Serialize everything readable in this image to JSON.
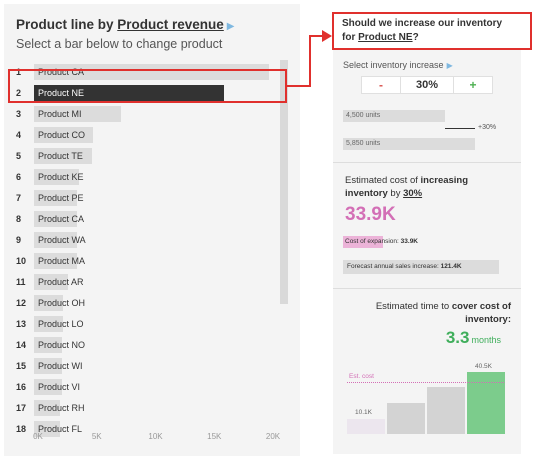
{
  "left": {
    "title_prefix": "Product line by ",
    "title_link": "Product revenue",
    "subtitle": "Select a bar below to change product",
    "rows": [
      {
        "rank": "1",
        "label": "Product CA",
        "value": 20000,
        "selected": false
      },
      {
        "rank": "2",
        "label": "Product NE",
        "value": 16200,
        "selected": true
      },
      {
        "rank": "3",
        "label": "Product MI",
        "value": 7400,
        "selected": false
      },
      {
        "rank": "4",
        "label": "Product CO",
        "value": 5000,
        "selected": false
      },
      {
        "rank": "5",
        "label": "Product TE",
        "value": 4900,
        "selected": false
      },
      {
        "rank": "6",
        "label": "Product KE",
        "value": 3800,
        "selected": false
      },
      {
        "rank": "7",
        "label": "Product PE",
        "value": 3700,
        "selected": false
      },
      {
        "rank": "8",
        "label": "Product CA",
        "value": 3700,
        "selected": false
      },
      {
        "rank": "9",
        "label": "Product WA",
        "value": 3700,
        "selected": false
      },
      {
        "rank": "10",
        "label": "Product MA",
        "value": 3700,
        "selected": false
      },
      {
        "rank": "11",
        "label": "Product AR",
        "value": 2900,
        "selected": false
      },
      {
        "rank": "12",
        "label": "Product OH",
        "value": 2500,
        "selected": false
      },
      {
        "rank": "13",
        "label": "Product LO",
        "value": 2500,
        "selected": false
      },
      {
        "rank": "14",
        "label": "Product NO",
        "value": 2400,
        "selected": false
      },
      {
        "rank": "15",
        "label": "Product WI",
        "value": 2400,
        "selected": false
      },
      {
        "rank": "16",
        "label": "Product VI",
        "value": 2400,
        "selected": false
      },
      {
        "rank": "17",
        "label": "Product RH",
        "value": 2200,
        "selected": false
      },
      {
        "rank": "18",
        "label": "Product FL",
        "value": 2200,
        "selected": false
      }
    ],
    "x_ticks": [
      "0K",
      "5K",
      "10K",
      "15K",
      "20K"
    ],
    "x_max": 20000
  },
  "question": {
    "line1": "Should we increase our inventory",
    "line2_prefix": "for ",
    "line2_link": "Product NE",
    "line2_suffix": "?"
  },
  "inventory": {
    "select_label": "Select inventory increase",
    "minus_label": "-",
    "value": "30%",
    "plus_label": "+",
    "current_units": "4,500 units",
    "new_units": "5,850 units",
    "delta_label": "+30%"
  },
  "cost": {
    "heading_1": "Estimated cost of ",
    "heading_bold": "increasing inventory",
    "heading_2": " by ",
    "heading_link": "30%",
    "value": "33.9K",
    "expansion_label": "Cost of expansion: ",
    "expansion_value": "33.9K",
    "forecast_label": "Forecast annual sales increase: ",
    "forecast_value": "121.4K"
  },
  "time": {
    "heading_1": "Estimated time to ",
    "heading_bold": "cover cost of inventory:",
    "value": "3.3",
    "unit": "months",
    "est_cost_label": "Est. cost",
    "label_low": "10.1K",
    "label_high": "40.5K",
    "bars": [
      {
        "value": 10.1,
        "color": "#ece6ee"
      },
      {
        "value": 20.2,
        "color": "#d3d3d3"
      },
      {
        "value": 30.4,
        "color": "#d3d3d3"
      },
      {
        "value": 40.5,
        "color": "#7ccc8c"
      }
    ],
    "est_cost": 33.9
  },
  "colors": {
    "accent_red": "#e0302d",
    "cost_pink": "#d36fb6",
    "time_green": "#3fae5b"
  }
}
